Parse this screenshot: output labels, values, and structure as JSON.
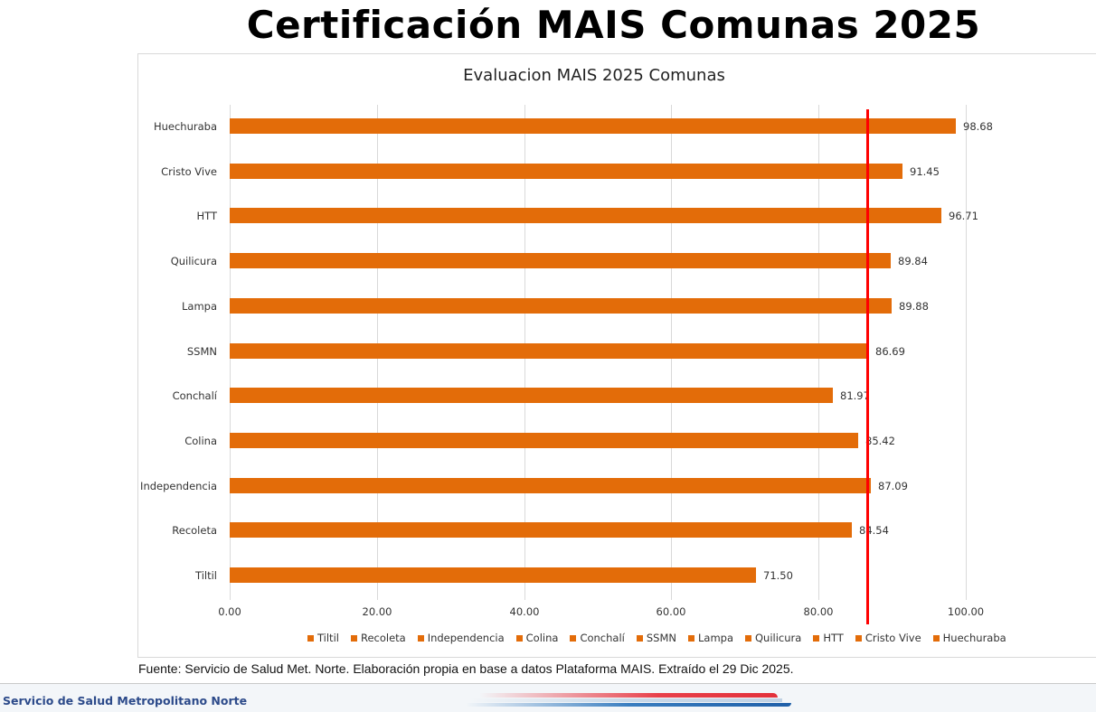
{
  "page": {
    "title": "Certificación MAIS Comunas 2025",
    "source_note": "Fuente: Servicio de Salud Met. Norte. Elaboración propia en base a datos Plataforma MAIS. Extraído el 29 Dic 2025.",
    "footer_org": "Servicio de Salud Metropolitano Norte"
  },
  "colors": {
    "bar": "#e36c09",
    "reference_line": "#ff0000",
    "gridline": "#d9d9d9",
    "footer_text": "#2c4a8a"
  },
  "chart_data": {
    "type": "bar",
    "orientation": "horizontal",
    "title": "Evaluacion MAIS 2025 Comunas",
    "xlabel": "",
    "ylabel": "",
    "xlim": [
      0,
      100
    ],
    "x_ticks": [
      "0.00",
      "20.00",
      "40.00",
      "60.00",
      "80.00",
      "100.00"
    ],
    "grid": "vertical",
    "legend_position": "bottom",
    "categories": [
      "Huechuraba",
      "Cristo Vive",
      "HTT",
      "Quilicura",
      "Lampa",
      "SSMN",
      "Conchalí",
      "Colina",
      "Independencia",
      "Recoleta",
      "Tiltil"
    ],
    "values": [
      98.68,
      91.45,
      96.71,
      89.84,
      89.88,
      86.69,
      81.97,
      85.42,
      87.09,
      84.54,
      71.5
    ],
    "value_labels": [
      "98.68",
      "91.45",
      "96.71",
      "89.84",
      "89.88",
      "86.69",
      "81.97",
      "85.42",
      "87.09",
      "84.54",
      "71.50"
    ],
    "legend": [
      "Tiltil",
      "Recoleta",
      "Independencia",
      "Colina",
      "Conchalí",
      "SSMN",
      "Lampa",
      "Quilicura",
      "HTT",
      "Cristo Vive",
      "Huechuraba"
    ],
    "reference_line": {
      "x": 86.69,
      "color": "#ff0000",
      "orientation": "vertical"
    }
  }
}
